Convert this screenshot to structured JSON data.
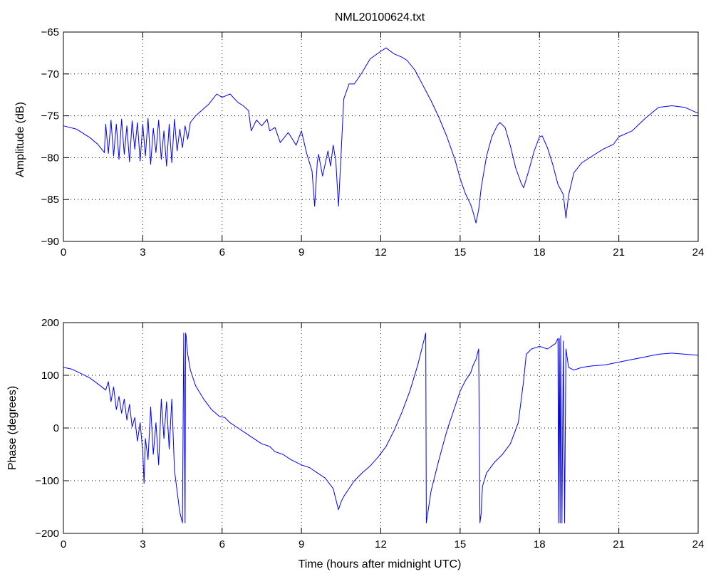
{
  "chart_data": [
    {
      "type": "line",
      "title": "NML20100624.txt",
      "xlabel": "",
      "ylabel": "Amplitude (dB)",
      "xlim": [
        0,
        24
      ],
      "ylim": [
        -90,
        -65
      ],
      "xticks": [
        "0",
        "3",
        "6",
        "9",
        "12",
        "15",
        "18",
        "21",
        "24"
      ],
      "yticks": [
        "-65",
        "-70",
        "-75",
        "-80",
        "-85",
        "-90"
      ],
      "grid": true,
      "color": "#0000ff",
      "series": [
        {
          "x": [
            0,
            0.5,
            1,
            1.3,
            1.55,
            1.6,
            1.7,
            1.8,
            1.9,
            2.0,
            2.1,
            2.2,
            2.3,
            2.4,
            2.5,
            2.6,
            2.7,
            2.8,
            2.9,
            3.0,
            3.1,
            3.2,
            3.3,
            3.4,
            3.5,
            3.6,
            3.7,
            3.8,
            3.9,
            4.0,
            4.1,
            4.2,
            4.3,
            4.4,
            4.5,
            4.6,
            4.7,
            4.8,
            5.0,
            5.5,
            5.8,
            6.0,
            6.3,
            6.6,
            6.8,
            7.0,
            7.1,
            7.3,
            7.5,
            7.7,
            7.8,
            8.0,
            8.2,
            8.5,
            8.8,
            9.0,
            9.2,
            9.4,
            9.5,
            9.6,
            9.65,
            9.7,
            9.8,
            10.0,
            10.1,
            10.2,
            10.3,
            10.4,
            10.5,
            10.6,
            10.8,
            11.0,
            11.3,
            11.6,
            12.0,
            12.2,
            12.5,
            12.8,
            13.0,
            13.3,
            13.6,
            13.9,
            14.2,
            14.5,
            14.8,
            15.0,
            15.2,
            15.4,
            15.5,
            15.6,
            15.7,
            15.8,
            16.0,
            16.2,
            16.4,
            16.5,
            16.7,
            16.9,
            17.1,
            17.3,
            17.4,
            17.6,
            17.8,
            18.0,
            18.1,
            18.3,
            18.5,
            18.7,
            18.9,
            19.0,
            19.1,
            19.3,
            19.6,
            20.0,
            20.4,
            20.8,
            21.0,
            21.5,
            22.0,
            22.5,
            23.0,
            23.5,
            24.0
          ],
          "values": [
            -76.2,
            -76.6,
            -77.6,
            -78.4,
            -79.4,
            -76.0,
            -79.5,
            -75.5,
            -79.8,
            -76.0,
            -80.2,
            -75.4,
            -79.6,
            -76.2,
            -80.5,
            -75.6,
            -79.0,
            -75.8,
            -80.4,
            -76.0,
            -79.8,
            -75.3,
            -80.8,
            -76.5,
            -79.4,
            -75.5,
            -80.2,
            -76.8,
            -81.0,
            -76.0,
            -80.6,
            -75.4,
            -79.2,
            -76.6,
            -78.8,
            -76.2,
            -77.8,
            -75.8,
            -75.0,
            -73.6,
            -72.4,
            -72.8,
            -72.4,
            -73.4,
            -73.8,
            -74.4,
            -76.8,
            -75.5,
            -76.2,
            -75.4,
            -76.8,
            -76.4,
            -78.2,
            -77.0,
            -78.5,
            -76.8,
            -79.5,
            -81.6,
            -85.8,
            -80.5,
            -79.6,
            -80.5,
            -82.2,
            -79.2,
            -81.0,
            -78.5,
            -80.4,
            -85.8,
            -79.5,
            -73.0,
            -71.2,
            -71.2,
            -69.8,
            -68.2,
            -67.3,
            -66.9,
            -67.6,
            -68.0,
            -68.4,
            -69.6,
            -71.4,
            -73.2,
            -75.2,
            -77.5,
            -80.2,
            -82.5,
            -84.3,
            -85.6,
            -86.6,
            -87.8,
            -86.2,
            -83.5,
            -79.8,
            -77.5,
            -76.2,
            -75.8,
            -76.4,
            -78.6,
            -81.2,
            -83.0,
            -83.6,
            -81.5,
            -79.2,
            -77.5,
            -77.4,
            -78.8,
            -80.8,
            -83.2,
            -84.4,
            -87.2,
            -84.5,
            -81.8,
            -80.6,
            -79.8,
            -79.0,
            -78.4,
            -77.5,
            -76.8,
            -75.3,
            -74.0,
            -73.8,
            -74.0,
            -74.7
          ]
        }
      ]
    },
    {
      "type": "line",
      "title": "",
      "xlabel": "Time (hours after midnight UTC)",
      "ylabel": "Phase (degrees)",
      "xlim": [
        0,
        24
      ],
      "ylim": [
        -200,
        200
      ],
      "xticks": [
        "0",
        "3",
        "6",
        "9",
        "12",
        "15",
        "18",
        "21",
        "24"
      ],
      "yticks": [
        "200",
        "100",
        "0",
        "-100",
        "-200"
      ],
      "grid": true,
      "color": "#0000ff",
      "series": [
        {
          "x": [
            0,
            0.3,
            0.6,
            1.0,
            1.4,
            1.6,
            1.7,
            1.8,
            1.9,
            2.0,
            2.1,
            2.2,
            2.3,
            2.4,
            2.5,
            2.6,
            2.7,
            2.8,
            2.9,
            3.0,
            3.05,
            3.1,
            3.2,
            3.3,
            3.4,
            3.5,
            3.6,
            3.7,
            3.8,
            3.9,
            4.0,
            4.1,
            4.2,
            4.3,
            4.4,
            4.5,
            4.55,
            4.6,
            4.62,
            4.64,
            4.66,
            4.7,
            4.8,
            5.0,
            5.3,
            5.6,
            5.9,
            6.1,
            6.3,
            6.6,
            6.9,
            7.2,
            7.5,
            7.8,
            8.0,
            8.3,
            8.6,
            8.8,
            9.0,
            9.3,
            9.6,
            9.9,
            10.2,
            10.4,
            10.5,
            10.6,
            10.8,
            11.0,
            11.3,
            11.6,
            11.9,
            12.2,
            12.5,
            12.8,
            13.1,
            13.4,
            13.7,
            13.72,
            13.9,
            14.2,
            14.5,
            14.8,
            15.0,
            15.2,
            15.4,
            15.5,
            15.6,
            15.7,
            15.75,
            15.8,
            15.82,
            15.85,
            16.0,
            16.3,
            16.6,
            16.9,
            17.2,
            17.4,
            17.5,
            17.7,
            18.0,
            18.3,
            18.6,
            18.7,
            18.72,
            18.75,
            18.78,
            18.8,
            18.85,
            18.9,
            18.95,
            19.0,
            19.1,
            19.3,
            19.6,
            20.0,
            20.5,
            21.0,
            21.5,
            22.0,
            22.5,
            23.0,
            23.5,
            24.0
          ],
          "values": [
            115,
            112,
            105,
            95,
            80,
            72,
            88,
            50,
            78,
            35,
            60,
            28,
            55,
            15,
            45,
            2,
            20,
            -25,
            10,
            -45,
            -105,
            -20,
            -60,
            40,
            -50,
            10,
            -70,
            55,
            -20,
            50,
            -40,
            55,
            -80,
            -120,
            -160,
            -180,
            180,
            -180,
            180,
            175,
            160,
            140,
            110,
            80,
            55,
            35,
            22,
            20,
            10,
            0,
            -10,
            -20,
            -30,
            -35,
            -45,
            -50,
            -60,
            -65,
            -70,
            -75,
            -85,
            -95,
            -115,
            -155,
            -140,
            -130,
            -115,
            -100,
            -85,
            -72,
            -55,
            -35,
            -5,
            30,
            70,
            120,
            180,
            -180,
            -120,
            -60,
            -5,
            40,
            70,
            90,
            105,
            120,
            130,
            150,
            -180,
            -160,
            -130,
            -110,
            -85,
            -65,
            -50,
            -30,
            10,
            90,
            140,
            150,
            155,
            150,
            160,
            170,
            -180,
            170,
            -180,
            175,
            -180,
            165,
            -180,
            150,
            115,
            110,
            115,
            118,
            120,
            125,
            130,
            135,
            140,
            142,
            140,
            138
          ]
        }
      ]
    }
  ]
}
